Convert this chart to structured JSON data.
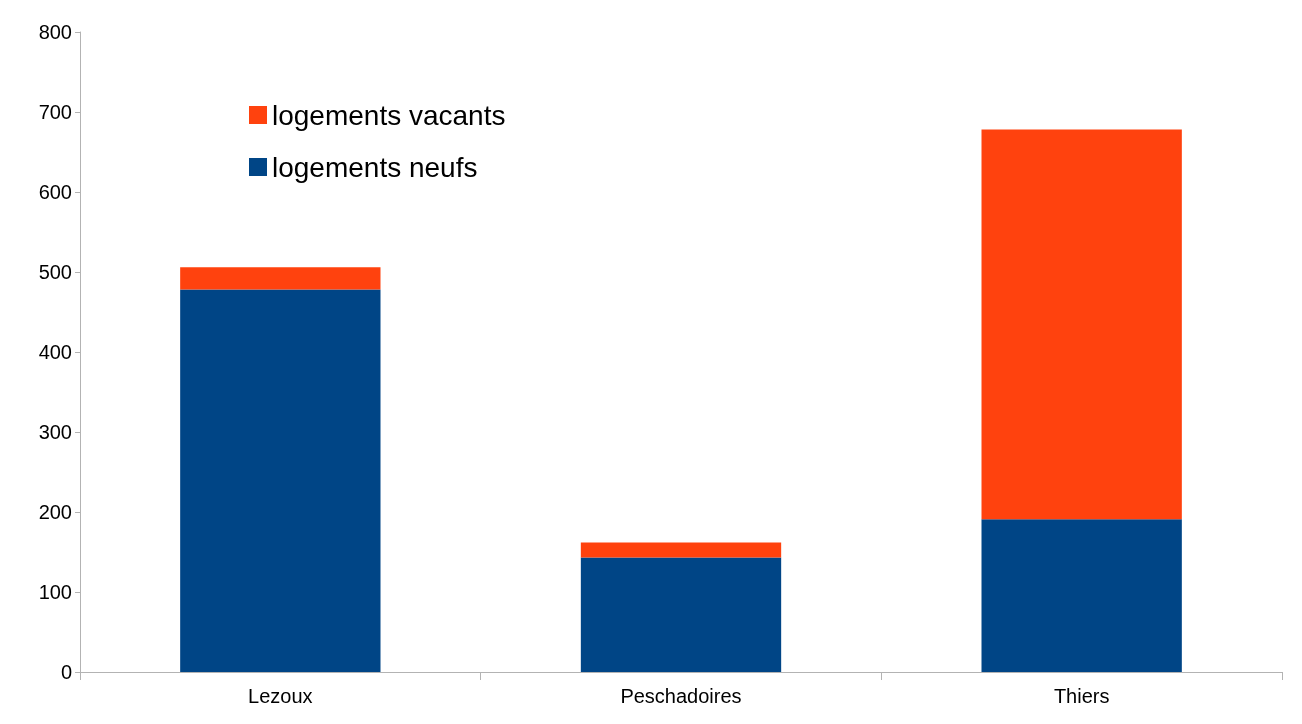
{
  "chart_data": {
    "type": "bar",
    "stacked": true,
    "categories": [
      "Lezoux",
      "Peschadoires",
      "Thiers"
    ],
    "series": [
      {
        "name": "logements neufs",
        "color": "#004586",
        "values": [
          478,
          143,
          191
        ]
      },
      {
        "name": "logements vacants",
        "color": "#ff420e",
        "values": [
          28,
          19,
          487
        ]
      }
    ],
    "ylim": [
      0,
      800
    ],
    "yticks": [
      0,
      100,
      200,
      300,
      400,
      500,
      600,
      700,
      800
    ],
    "grid": false,
    "legend": "top left"
  }
}
